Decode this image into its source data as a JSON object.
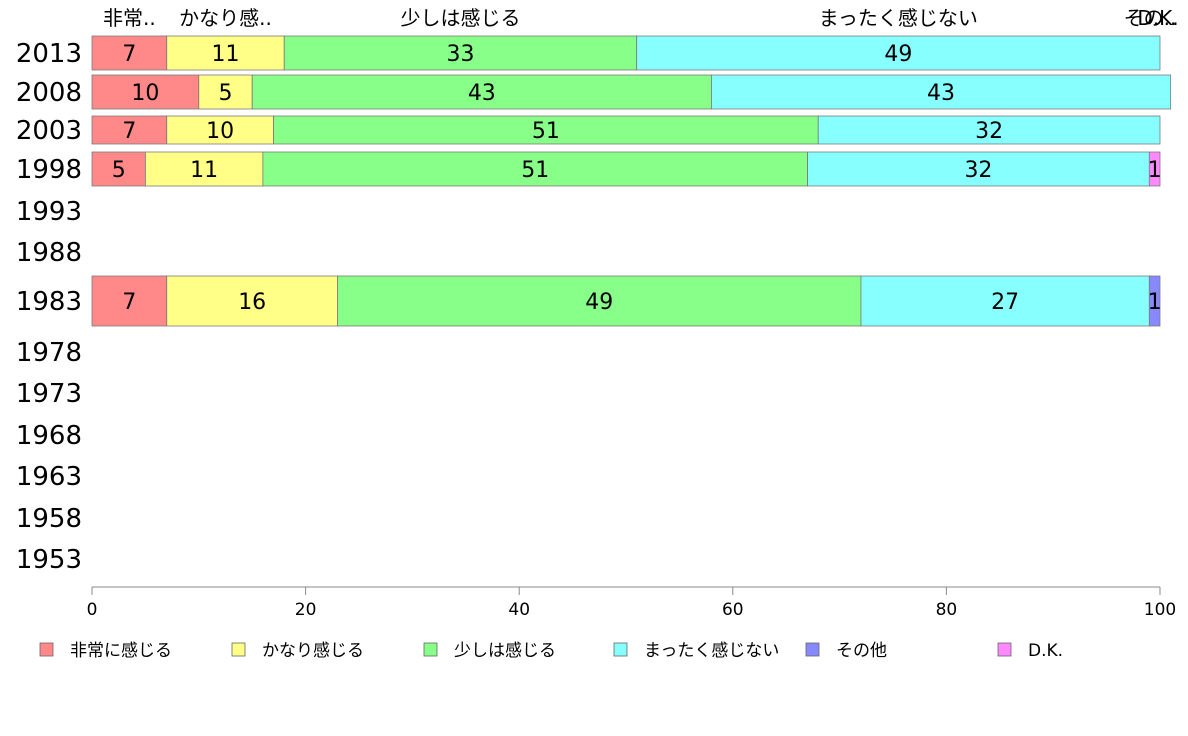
{
  "chart_data": {
    "type": "bar",
    "orientation": "horizontal",
    "stacked": true,
    "years": [
      "2013",
      "2008",
      "2003",
      "1998",
      "1993",
      "1988",
      "1983",
      "1978",
      "1973",
      "1968",
      "1963",
      "1958",
      "1953"
    ],
    "series": [
      {
        "name": "非常に感じる",
        "short_name": "非常..",
        "color": "#ff8888",
        "values": [
          7,
          10,
          7,
          5,
          null,
          null,
          7,
          null,
          null,
          null,
          null,
          null,
          null
        ]
      },
      {
        "name": "かなり感じる",
        "short_name": "かなり感..",
        "color": "#ffff88",
        "values": [
          11,
          5,
          10,
          11,
          null,
          null,
          16,
          null,
          null,
          null,
          null,
          null,
          null
        ]
      },
      {
        "name": "少しは感じる",
        "short_name": "少しは感じる",
        "color": "#88ff88",
        "values": [
          33,
          43,
          51,
          51,
          null,
          null,
          49,
          null,
          null,
          null,
          null,
          null,
          null
        ]
      },
      {
        "name": "まったく感じない",
        "short_name": "まったく感じない",
        "color": "#88ffff",
        "values": [
          49,
          43,
          32,
          32,
          null,
          null,
          27,
          null,
          null,
          null,
          null,
          null,
          null
        ]
      },
      {
        "name": "その他",
        "short_name": "その..",
        "color": "#8888ff",
        "values": [
          0,
          0,
          0,
          0,
          null,
          null,
          1,
          null,
          null,
          null,
          null,
          null,
          null
        ]
      },
      {
        "name": "D.K.",
        "short_name": "D.K.",
        "color": "#ff88ff",
        "values": [
          0,
          0,
          0,
          1,
          null,
          null,
          0,
          null,
          null,
          null,
          null,
          null,
          null
        ]
      }
    ],
    "value_labels": [
      [
        "7",
        "11",
        "33",
        "49",
        "",
        ""
      ],
      [
        "10",
        "5",
        "43",
        "43",
        "",
        ""
      ],
      [
        "7",
        "10",
        "51",
        "32",
        "",
        ""
      ],
      [
        "5",
        "11",
        "51",
        "32",
        "",
        "1"
      ],
      [
        "",
        "",
        "",
        "",
        "",
        ""
      ],
      [
        "",
        "",
        "",
        "",
        "",
        ""
      ],
      [
        "7",
        "16",
        "49",
        "27",
        "1",
        ""
      ],
      [
        "",
        "",
        "",
        "",
        "",
        ""
      ],
      [
        "",
        "",
        "",
        "",
        "",
        ""
      ],
      [
        "",
        "",
        "",
        "",
        "",
        ""
      ],
      [
        "",
        "",
        "",
        "",
        "",
        ""
      ],
      [
        "",
        "",
        "",
        "",
        "",
        ""
      ],
      [
        "",
        "",
        "",
        "",
        "",
        ""
      ]
    ],
    "xlim": [
      0,
      100
    ],
    "xticks": [
      0,
      20,
      40,
      60,
      80,
      100
    ],
    "grid": false,
    "legend_position": "bottom"
  }
}
